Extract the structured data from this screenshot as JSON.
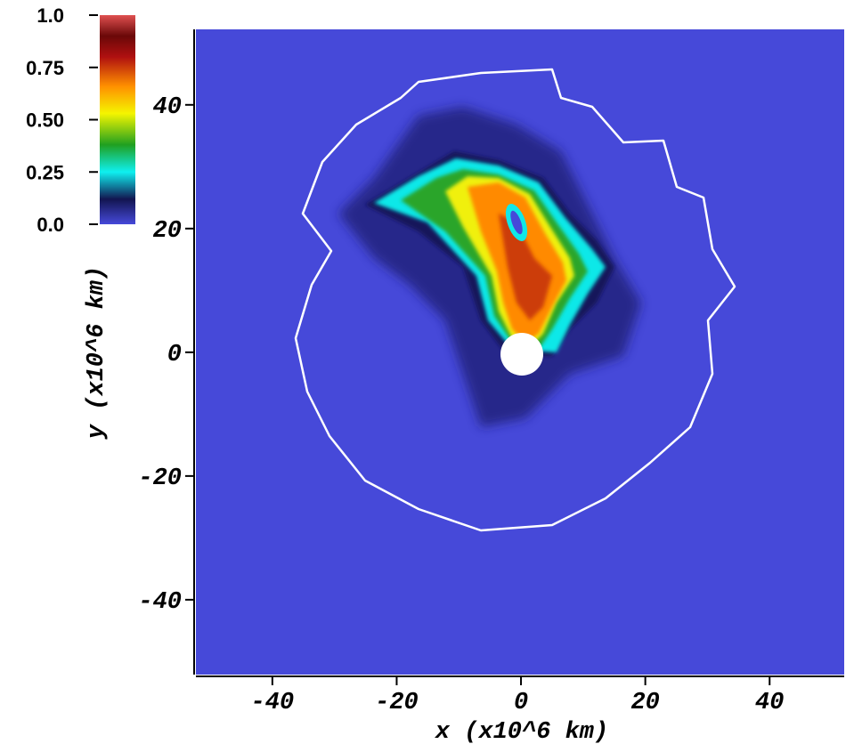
{
  "chart_data": {
    "type": "image",
    "xlabel": "x (x10^6 km)",
    "ylabel": "y (x10^6 km)",
    "xlim": [
      -52.3,
      52
    ],
    "ylim": [
      -52.1,
      52.2
    ],
    "xticks": [
      -40,
      -20,
      0,
      20,
      40
    ],
    "yticks": [
      -40,
      -20,
      0,
      20,
      40
    ],
    "colorbar": {
      "lim": [
        0,
        1
      ],
      "ticks": [
        {
          "value": 0,
          "label": "0.0"
        },
        0.25,
        {
          "value": 0.5,
          "label": "0.50"
        },
        0.75,
        {
          "value": 1,
          "label": "1.0"
        }
      ]
    }
  }
}
